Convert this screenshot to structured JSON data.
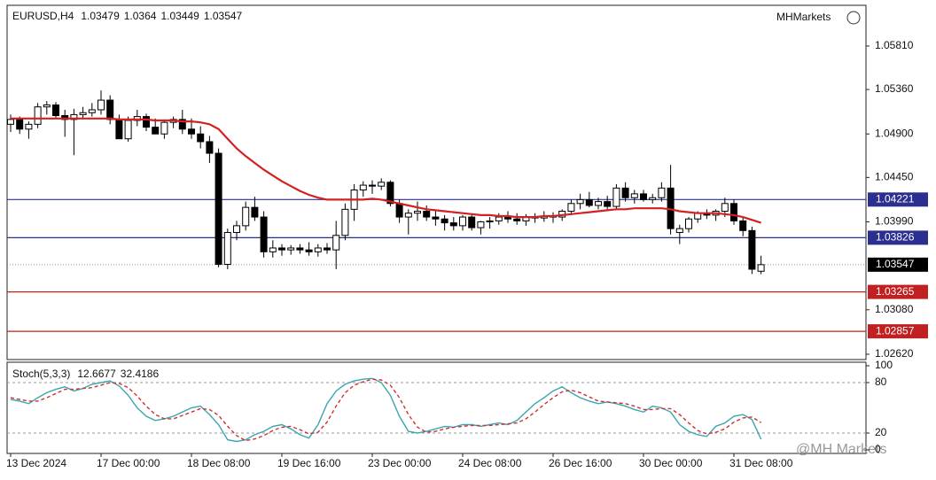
{
  "branding": {
    "logo": "MHMarkets",
    "watermark": "@MH Markets"
  },
  "chart_data": [
    {
      "type": "candlestick",
      "title": "EURUSD,H4",
      "header_values": [
        1.03479,
        1.0364,
        1.03449,
        1.03547
      ],
      "categories": [
        "13 Dec 2024",
        null,
        null,
        null,
        null,
        null,
        null,
        null,
        null,
        null,
        "17 Dec 00:00",
        null,
        null,
        null,
        null,
        null,
        null,
        null,
        null,
        null,
        "18 Dec 08:00",
        null,
        null,
        null,
        null,
        null,
        null,
        null,
        null,
        null,
        "19 Dec 16:00",
        null,
        null,
        null,
        null,
        null,
        null,
        null,
        null,
        null,
        "23 Dec 00:00",
        null,
        null,
        null,
        null,
        null,
        null,
        null,
        null,
        null,
        "24 Dec 08:00",
        null,
        null,
        null,
        null,
        null,
        null,
        null,
        null,
        null,
        "26 Dec 16:00",
        null,
        null,
        null,
        null,
        null,
        null,
        null,
        null,
        null,
        "30 Dec 00:00",
        null,
        null,
        null,
        null,
        null,
        null,
        null,
        null,
        null,
        "31 Dec 08:00",
        null,
        null,
        null
      ],
      "open": [
        1.05,
        1.0505,
        1.0495,
        1.05,
        1.0518,
        1.052,
        1.0509,
        1.0505,
        1.051,
        1.0512,
        1.0515,
        1.0525,
        1.0505,
        1.0485,
        1.0504,
        1.0508,
        1.0497,
        1.049,
        1.0502,
        1.0505,
        1.0495,
        1.049,
        1.0482,
        1.047,
        1.0355,
        1.0388,
        1.0395,
        1.0414,
        1.0404,
        1.0368,
        1.0372,
        1.037,
        1.0372,
        1.037,
        1.0368,
        1.0372,
        1.037,
        1.0385,
        1.0412,
        1.0432,
        1.0437,
        1.0436,
        1.044,
        1.0418,
        1.0404,
        1.0408,
        1.041,
        1.0404,
        1.0402,
        1.0398,
        1.0395,
        1.0404,
        1.0393,
        1.0399,
        1.04,
        1.0404,
        1.0402,
        1.04,
        1.0404,
        1.0403,
        1.0405,
        1.0404,
        1.041,
        1.0418,
        1.0422,
        1.0416,
        1.042,
        1.0415,
        1.0434,
        1.0424,
        1.0428,
        1.0422,
        1.0424,
        1.0434,
        1.0388,
        1.0392,
        1.0402,
        1.0408,
        1.0406,
        1.041,
        1.0418,
        1.04,
        1.039,
        1.03479
      ],
      "high": [
        1.051,
        1.0508,
        1.0503,
        1.0522,
        1.0524,
        1.0523,
        1.0515,
        1.0516,
        1.0518,
        1.0522,
        1.0535,
        1.053,
        1.051,
        1.0508,
        1.0515,
        1.0511,
        1.0506,
        1.0505,
        1.0508,
        1.0515,
        1.0506,
        1.0498,
        1.0488,
        1.0475,
        1.0392,
        1.04,
        1.042,
        1.0425,
        1.041,
        1.038,
        1.0376,
        1.0375,
        1.0376,
        1.0378,
        1.0376,
        1.0377,
        1.04,
        1.0418,
        1.0438,
        1.0441,
        1.0442,
        1.0444,
        1.0442,
        1.0422,
        1.0412,
        1.042,
        1.0416,
        1.041,
        1.0406,
        1.0404,
        1.0406,
        1.0406,
        1.04,
        1.0404,
        1.0408,
        1.041,
        1.0408,
        1.0407,
        1.0408,
        1.041,
        1.0409,
        1.0412,
        1.0422,
        1.0428,
        1.043,
        1.0424,
        1.0426,
        1.0438,
        1.044,
        1.0432,
        1.0432,
        1.0428,
        1.044,
        1.0458,
        1.0396,
        1.0404,
        1.041,
        1.0412,
        1.0412,
        1.0424,
        1.0422,
        1.0404,
        1.0394,
        1.0364
      ],
      "low": [
        1.0492,
        1.049,
        1.0485,
        1.0496,
        1.051,
        1.0507,
        1.0487,
        1.0468,
        1.0505,
        1.0508,
        1.051,
        1.05,
        1.0486,
        1.0482,
        1.0498,
        1.0493,
        1.049,
        1.0485,
        1.0496,
        1.049,
        1.0485,
        1.0475,
        1.046,
        1.0352,
        1.035,
        1.038,
        1.039,
        1.04,
        1.0362,
        1.0362,
        1.0364,
        1.0365,
        1.0366,
        1.0364,
        1.0363,
        1.0366,
        1.035,
        1.038,
        1.04,
        1.0425,
        1.0428,
        1.0432,
        1.0415,
        1.0398,
        1.0386,
        1.04,
        1.04,
        1.0395,
        1.039,
        1.039,
        1.039,
        1.039,
        1.0386,
        1.0392,
        1.0396,
        1.0398,
        1.0396,
        1.0395,
        1.0398,
        1.0399,
        1.0398,
        1.04,
        1.0406,
        1.0412,
        1.0414,
        1.0412,
        1.0412,
        1.0412,
        1.042,
        1.0418,
        1.042,
        1.0418,
        1.042,
        1.0386,
        1.0376,
        1.0388,
        1.0398,
        1.0402,
        1.04,
        1.0404,
        1.0396,
        1.0384,
        1.0345,
        1.03449
      ],
      "close": [
        1.0505,
        1.0495,
        1.05,
        1.0518,
        1.052,
        1.0509,
        1.0505,
        1.051,
        1.0512,
        1.0515,
        1.0525,
        1.0505,
        1.0485,
        1.0504,
        1.0508,
        1.0497,
        1.049,
        1.0502,
        1.0505,
        1.0495,
        1.049,
        1.0482,
        1.047,
        1.0355,
        1.0388,
        1.0395,
        1.0414,
        1.0404,
        1.0368,
        1.0372,
        1.037,
        1.0372,
        1.037,
        1.0368,
        1.0372,
        1.037,
        1.0385,
        1.0412,
        1.0432,
        1.0437,
        1.0436,
        1.044,
        1.0418,
        1.0404,
        1.0408,
        1.041,
        1.0404,
        1.0402,
        1.0398,
        1.0395,
        1.0404,
        1.0393,
        1.0399,
        1.04,
        1.0404,
        1.0402,
        1.04,
        1.0404,
        1.0403,
        1.0405,
        1.0404,
        1.041,
        1.0418,
        1.0422,
        1.0416,
        1.042,
        1.0415,
        1.0434,
        1.0424,
        1.0428,
        1.0422,
        1.0424,
        1.0434,
        1.0392,
        1.0392,
        1.0402,
        1.0408,
        1.0406,
        1.041,
        1.0418,
        1.04,
        1.039,
        1.035,
        1.03547
      ],
      "up_color": "#ffffff",
      "down_color": "#000000",
      "ma": {
        "color": "#d42020",
        "values": [
          1.0506,
          1.0506,
          1.0506,
          1.0506,
          1.0506,
          1.0506,
          1.0506,
          1.0506,
          1.0506,
          1.0506,
          1.0506,
          1.0506,
          1.0505,
          1.0505,
          1.0505,
          1.0505,
          1.0504,
          1.0504,
          1.0504,
          1.0503,
          1.0503,
          1.0502,
          1.05,
          1.0495,
          1.0485,
          1.0475,
          1.0467,
          1.046,
          1.0453,
          1.0447,
          1.0441,
          1.0436,
          1.0431,
          1.0427,
          1.0424,
          1.0422,
          1.0422,
          1.0422,
          1.0422,
          1.0422,
          1.0423,
          1.0422,
          1.042,
          1.0418,
          1.0416,
          1.0414,
          1.0412,
          1.0411,
          1.041,
          1.0409,
          1.0408,
          1.0407,
          1.0406,
          1.0406,
          1.0405,
          1.0405,
          1.0404,
          1.0404,
          1.0404,
          1.0405,
          1.0405,
          1.0406,
          1.0407,
          1.0408,
          1.0409,
          1.041,
          1.0411,
          1.0412,
          1.0412,
          1.0413,
          1.0413,
          1.0413,
          1.0413,
          1.0412,
          1.041,
          1.0409,
          1.0408,
          1.0408,
          1.0408,
          1.0407,
          1.0406,
          1.0404,
          1.0401,
          1.0398
        ]
      },
      "levels": [
        {
          "value": 1.04221,
          "color": "#2b2f8f"
        },
        {
          "value": 1.03826,
          "color": "#2b2f8f"
        },
        {
          "value": 1.03265,
          "color": "#c02020"
        },
        {
          "value": 1.02857,
          "color": "#c02020"
        }
      ],
      "current_price": {
        "value": 1.03547,
        "color": "#000000"
      },
      "ylim": [
        1.02574,
        1.06213
      ],
      "yticks": [
        {
          "value": 1.0581,
          "label": "1.05810"
        },
        {
          "value": 1.0536,
          "label": "1.05360"
        },
        {
          "value": 1.049,
          "label": "1.04900"
        },
        {
          "value": 1.0445,
          "label": "1.04450"
        },
        {
          "value": 1.0399,
          "label": "1.03990"
        },
        {
          "value": 1.0308,
          "label": "1.03080"
        },
        {
          "value": 1.0262,
          "label": "1.02620"
        }
      ]
    },
    {
      "type": "line",
      "title": "Stoch(5,3,3)",
      "header_values": [
        12.6677,
        32.4186
      ],
      "series": [
        {
          "name": "%K",
          "color": "#3aa6b0",
          "values": [
            60,
            58,
            55,
            62,
            68,
            72,
            75,
            70,
            73,
            78,
            80,
            82,
            76,
            65,
            50,
            40,
            35,
            37,
            40,
            45,
            50,
            52,
            42,
            30,
            12,
            10,
            12,
            18,
            22,
            28,
            30,
            25,
            18,
            14,
            30,
            55,
            70,
            78,
            82,
            84,
            85,
            80,
            65,
            40,
            22,
            20,
            22,
            25,
            28,
            27,
            30,
            30,
            28,
            30,
            32,
            30,
            35,
            45,
            55,
            62,
            70,
            75,
            68,
            62,
            58,
            55,
            57,
            55,
            52,
            48,
            45,
            52,
            50,
            45,
            30,
            22,
            18,
            16,
            28,
            32,
            40,
            42,
            36,
            12.6677
          ]
        },
        {
          "name": "%D",
          "color": "#d03030",
          "dashed": true,
          "values": [
            62,
            60,
            58,
            58,
            62,
            67,
            72,
            72,
            73,
            74,
            77,
            80,
            79,
            74,
            64,
            52,
            42,
            37,
            37,
            41,
            45,
            49,
            48,
            41,
            28,
            17,
            11,
            13,
            17,
            23,
            27,
            28,
            24,
            19,
            21,
            33,
            52,
            68,
            77,
            81,
            84,
            83,
            77,
            62,
            42,
            27,
            21,
            22,
            25,
            27,
            28,
            29,
            29,
            29,
            30,
            31,
            32,
            37,
            45,
            54,
            62,
            69,
            71,
            68,
            63,
            58,
            57,
            56,
            55,
            52,
            48,
            48,
            49,
            49,
            42,
            32,
            23,
            19,
            21,
            25,
            33,
            38,
            39,
            32.4186
          ]
        }
      ],
      "ylim": [
        0,
        100
      ],
      "yticks": [
        100,
        80,
        20,
        0
      ]
    }
  ]
}
